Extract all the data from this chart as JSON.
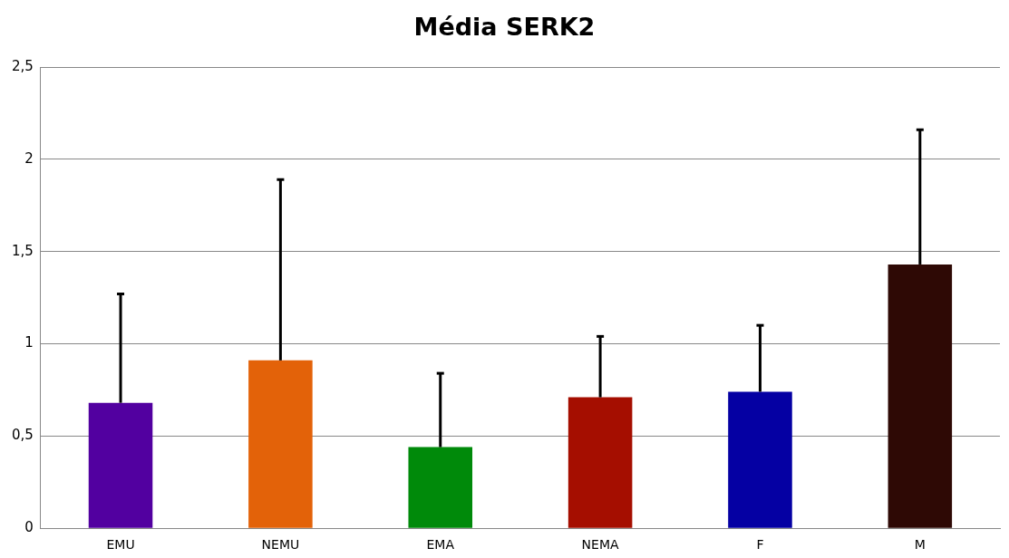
{
  "chart_data": {
    "type": "bar",
    "title": "Média SERK2",
    "categories": [
      "EMU",
      "NEMU",
      "EMA",
      "NEMA",
      "F",
      "M"
    ],
    "values": [
      0.68,
      0.91,
      0.44,
      0.71,
      0.74,
      1.43
    ],
    "errors": [
      [
        0.68,
        1.27
      ],
      [
        0.91,
        1.89
      ],
      [
        0.44,
        0.84
      ],
      [
        0.71,
        1.04
      ],
      [
        0.74,
        1.1
      ],
      [
        1.43,
        2.16
      ]
    ],
    "colors": [
      "#5200a0",
      "#e36209",
      "#008a0a",
      "#a50e00",
      "#0500a3",
      "#2e0905"
    ],
    "ylim": [
      0,
      2.5
    ],
    "yticks": [
      0,
      {
        "value": 0.5,
        "label": "0,5"
      },
      1,
      {
        "value": 1.5,
        "label": "1,5"
      },
      2,
      {
        "value": 2.5,
        "label": "2,5"
      }
    ],
    "grid": "y",
    "legend": false
  }
}
